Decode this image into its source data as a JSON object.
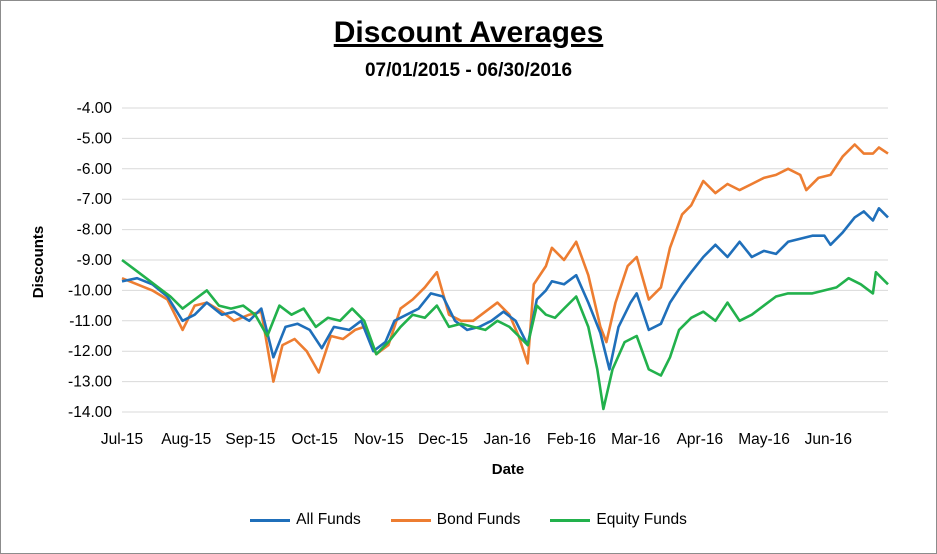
{
  "chart_data": {
    "type": "line",
    "title": "Discount Averages",
    "subtitle": "07/01/2015 - 06/30/2016",
    "xlabel": "Date",
    "ylabel": "Discounts",
    "ylim": [
      -14,
      -4
    ],
    "yticks": [
      "-4.00",
      "-5.00",
      "-6.00",
      "-7.00",
      "-8.00",
      "-9.00",
      "-10.00",
      "-11.00",
      "-12.00",
      "-13.00",
      "-14.00"
    ],
    "xticks": [
      "Jul-15",
      "Aug-15",
      "Sep-15",
      "Oct-15",
      "Nov-15",
      "Dec-15",
      "Jan-16",
      "Feb-16",
      "Mar-16",
      "Apr-16",
      "May-16",
      "Jun-16"
    ],
    "grid": true,
    "legend_position": "bottom",
    "x_unit": "trading day index (0 = Jul-15, 252 = end of Jun-16)",
    "x_max": 253,
    "series": [
      {
        "name": "All Funds",
        "color": "#1f6fba",
        "points": [
          [
            0,
            -9.7
          ],
          [
            5,
            -9.6
          ],
          [
            10,
            -9.8
          ],
          [
            15,
            -10.2
          ],
          [
            20,
            -11.0
          ],
          [
            24,
            -10.8
          ],
          [
            28,
            -10.4
          ],
          [
            33,
            -10.8
          ],
          [
            37,
            -10.7
          ],
          [
            42,
            -11.0
          ],
          [
            46,
            -10.6
          ],
          [
            50,
            -12.2
          ],
          [
            54,
            -11.2
          ],
          [
            58,
            -11.1
          ],
          [
            62,
            -11.3
          ],
          [
            66,
            -11.9
          ],
          [
            70,
            -11.2
          ],
          [
            75,
            -11.3
          ],
          [
            79,
            -11.0
          ],
          [
            83,
            -12.0
          ],
          [
            87,
            -11.7
          ],
          [
            90,
            -11.0
          ],
          [
            94,
            -10.8
          ],
          [
            98,
            -10.6
          ],
          [
            102,
            -10.1
          ],
          [
            106,
            -10.2
          ],
          [
            110,
            -11.0
          ],
          [
            114,
            -11.3
          ],
          [
            118,
            -11.2
          ],
          [
            122,
            -11.0
          ],
          [
            126,
            -10.7
          ],
          [
            130,
            -11.0
          ],
          [
            134,
            -11.8
          ],
          [
            137,
            -10.3
          ],
          [
            140,
            -10.0
          ],
          [
            142,
            -9.7
          ],
          [
            146,
            -9.8
          ],
          [
            150,
            -9.5
          ],
          [
            154,
            -10.4
          ],
          [
            158,
            -11.4
          ],
          [
            161,
            -12.6
          ],
          [
            164,
            -11.2
          ],
          [
            168,
            -10.4
          ],
          [
            170,
            -10.1
          ],
          [
            174,
            -11.3
          ],
          [
            178,
            -11.1
          ],
          [
            181,
            -10.4
          ],
          [
            185,
            -9.8
          ],
          [
            188,
            -9.4
          ],
          [
            192,
            -8.9
          ],
          [
            196,
            -8.5
          ],
          [
            200,
            -8.9
          ],
          [
            204,
            -8.4
          ],
          [
            208,
            -8.9
          ],
          [
            212,
            -8.7
          ],
          [
            216,
            -8.8
          ],
          [
            220,
            -8.4
          ],
          [
            224,
            -8.3
          ],
          [
            228,
            -8.2
          ],
          [
            232,
            -8.2
          ],
          [
            234,
            -8.5
          ],
          [
            238,
            -8.1
          ],
          [
            242,
            -7.6
          ],
          [
            245,
            -7.4
          ],
          [
            248,
            -7.7
          ],
          [
            250,
            -7.3
          ],
          [
            253,
            -7.6
          ]
        ]
      },
      {
        "name": "Bond Funds",
        "color": "#ed7d31",
        "points": [
          [
            0,
            -9.6
          ],
          [
            5,
            -9.8
          ],
          [
            10,
            -10.0
          ],
          [
            15,
            -10.3
          ],
          [
            20,
            -11.3
          ],
          [
            24,
            -10.5
          ],
          [
            28,
            -10.4
          ],
          [
            33,
            -10.7
          ],
          [
            37,
            -11.0
          ],
          [
            42,
            -10.8
          ],
          [
            46,
            -10.7
          ],
          [
            50,
            -13.0
          ],
          [
            53,
            -11.8
          ],
          [
            57,
            -11.6
          ],
          [
            61,
            -12.0
          ],
          [
            65,
            -12.7
          ],
          [
            69,
            -11.5
          ],
          [
            73,
            -11.6
          ],
          [
            77,
            -11.3
          ],
          [
            80,
            -11.2
          ],
          [
            84,
            -12.1
          ],
          [
            88,
            -11.8
          ],
          [
            92,
            -10.6
          ],
          [
            96,
            -10.3
          ],
          [
            100,
            -9.9
          ],
          [
            104,
            -9.4
          ],
          [
            108,
            -10.8
          ],
          [
            112,
            -11.0
          ],
          [
            116,
            -11.0
          ],
          [
            120,
            -10.7
          ],
          [
            124,
            -10.4
          ],
          [
            128,
            -10.8
          ],
          [
            131,
            -11.5
          ],
          [
            134,
            -12.4
          ],
          [
            136,
            -9.8
          ],
          [
            140,
            -9.2
          ],
          [
            142,
            -8.6
          ],
          [
            146,
            -9.0
          ],
          [
            150,
            -8.4
          ],
          [
            154,
            -9.5
          ],
          [
            158,
            -11.2
          ],
          [
            160,
            -11.7
          ],
          [
            163,
            -10.4
          ],
          [
            167,
            -9.2
          ],
          [
            170,
            -8.9
          ],
          [
            174,
            -10.3
          ],
          [
            178,
            -9.9
          ],
          [
            181,
            -8.6
          ],
          [
            185,
            -7.5
          ],
          [
            188,
            -7.2
          ],
          [
            192,
            -6.4
          ],
          [
            196,
            -6.8
          ],
          [
            200,
            -6.5
          ],
          [
            204,
            -6.7
          ],
          [
            208,
            -6.5
          ],
          [
            212,
            -6.3
          ],
          [
            216,
            -6.2
          ],
          [
            220,
            -6.0
          ],
          [
            224,
            -6.2
          ],
          [
            226,
            -6.7
          ],
          [
            230,
            -6.3
          ],
          [
            234,
            -6.2
          ],
          [
            238,
            -5.6
          ],
          [
            242,
            -5.2
          ],
          [
            245,
            -5.5
          ],
          [
            248,
            -5.5
          ],
          [
            250,
            -5.3
          ],
          [
            253,
            -5.5
          ]
        ]
      },
      {
        "name": "Equity Funds",
        "color": "#22b14c",
        "points": [
          [
            0,
            -9.0
          ],
          [
            4,
            -9.3
          ],
          [
            8,
            -9.6
          ],
          [
            12,
            -9.9
          ],
          [
            16,
            -10.2
          ],
          [
            20,
            -10.6
          ],
          [
            24,
            -10.3
          ],
          [
            28,
            -10.0
          ],
          [
            32,
            -10.5
          ],
          [
            36,
            -10.6
          ],
          [
            40,
            -10.5
          ],
          [
            44,
            -10.8
          ],
          [
            48,
            -11.5
          ],
          [
            52,
            -10.5
          ],
          [
            56,
            -10.8
          ],
          [
            60,
            -10.6
          ],
          [
            64,
            -11.2
          ],
          [
            68,
            -10.9
          ],
          [
            72,
            -11.0
          ],
          [
            76,
            -10.6
          ],
          [
            80,
            -11.0
          ],
          [
            84,
            -12.1
          ],
          [
            88,
            -11.7
          ],
          [
            92,
            -11.2
          ],
          [
            96,
            -10.8
          ],
          [
            100,
            -10.9
          ],
          [
            104,
            -10.5
          ],
          [
            108,
            -11.2
          ],
          [
            112,
            -11.1
          ],
          [
            116,
            -11.2
          ],
          [
            120,
            -11.3
          ],
          [
            124,
            -11.0
          ],
          [
            128,
            -11.2
          ],
          [
            131,
            -11.5
          ],
          [
            134,
            -11.8
          ],
          [
            137,
            -10.5
          ],
          [
            140,
            -10.8
          ],
          [
            143,
            -10.9
          ],
          [
            146,
            -10.6
          ],
          [
            150,
            -10.2
          ],
          [
            154,
            -11.2
          ],
          [
            157,
            -12.6
          ],
          [
            159,
            -13.9
          ],
          [
            162,
            -12.6
          ],
          [
            166,
            -11.7
          ],
          [
            170,
            -11.5
          ],
          [
            174,
            -12.6
          ],
          [
            178,
            -12.8
          ],
          [
            181,
            -12.2
          ],
          [
            184,
            -11.3
          ],
          [
            188,
            -10.9
          ],
          [
            192,
            -10.7
          ],
          [
            196,
            -11.0
          ],
          [
            200,
            -10.4
          ],
          [
            204,
            -11.0
          ],
          [
            208,
            -10.8
          ],
          [
            212,
            -10.5
          ],
          [
            216,
            -10.2
          ],
          [
            220,
            -10.1
          ],
          [
            224,
            -10.1
          ],
          [
            228,
            -10.1
          ],
          [
            232,
            -10.0
          ],
          [
            236,
            -9.9
          ],
          [
            240,
            -9.6
          ],
          [
            244,
            -9.8
          ],
          [
            248,
            -10.1
          ],
          [
            249,
            -9.4
          ],
          [
            252,
            -9.7
          ],
          [
            253,
            -9.8
          ]
        ]
      }
    ]
  }
}
